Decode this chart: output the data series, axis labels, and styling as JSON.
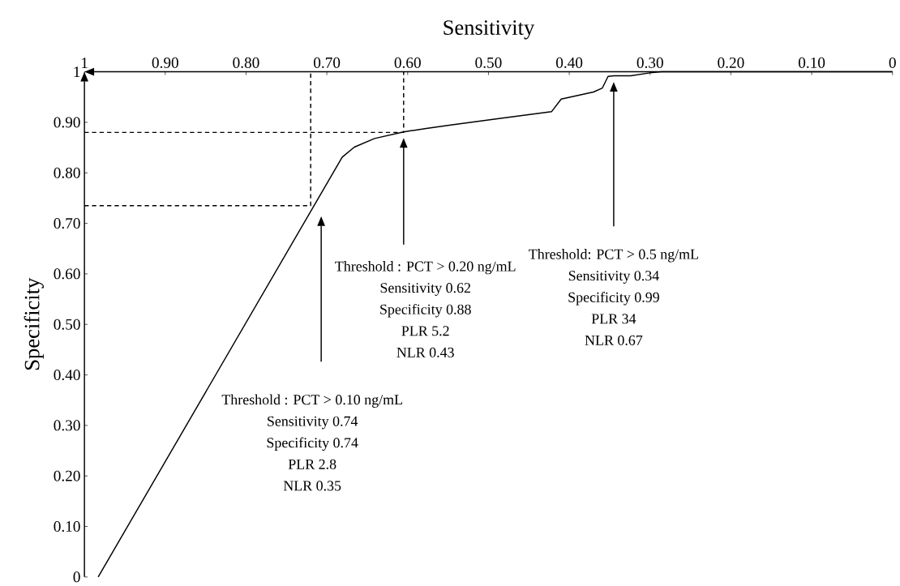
{
  "chart_data": {
    "type": "line",
    "xlabel": "Sensitivity",
    "ylabel": "Specificity",
    "xlim": [
      1,
      0
    ],
    "ylim": [
      0,
      1
    ],
    "xticks": [
      1,
      {
        "value": 0.9,
        "label": "0.90"
      },
      {
        "value": 0.8,
        "label": "0.80"
      },
      {
        "value": 0.7,
        "label": "0.70"
      },
      {
        "value": 0.6,
        "label": "0.60"
      },
      {
        "value": 0.5,
        "label": "0.50"
      },
      {
        "value": 0.4,
        "label": "0.40"
      },
      {
        "value": 0.3,
        "label": "0.30"
      },
      {
        "value": 0.2,
        "label": "0.20"
      },
      {
        "value": 0.1,
        "label": "0.10"
      },
      0
    ],
    "yticks": [
      0,
      {
        "value": 0.1,
        "label": "0.10"
      },
      {
        "value": 0.2,
        "label": "0.20"
      },
      {
        "value": 0.3,
        "label": "0.30"
      },
      {
        "value": 0.4,
        "label": "0.40"
      },
      {
        "value": 0.5,
        "label": "0.50"
      },
      {
        "value": 0.6,
        "label": "0.60"
      },
      {
        "value": 0.7,
        "label": "0.70"
      },
      {
        "value": 0.8,
        "label": "0.80"
      },
      {
        "value": 0.9,
        "label": "0.90"
      },
      1
    ],
    "line_style": "solid",
    "series": [
      {
        "color": "#000000",
        "x": [
          0.983,
          0.681,
          0.666,
          0.641,
          0.605,
          0.577,
          0.545,
          0.485,
          0.422,
          0.41,
          0.37,
          0.359,
          0.352,
          0.345,
          0.324,
          0.3,
          0.286,
          0
        ],
        "values": [
          0,
          0.831,
          0.851,
          0.868,
          0.881,
          0.888,
          0.895,
          0.908,
          0.921,
          0.946,
          0.96,
          0.968,
          0.991,
          0.992,
          0.992,
          0.998,
          1,
          1
        ]
      },
      {
        "color": "#000000",
        "line_style": "dashed",
        "x": [
          1,
          0.72,
          0.72
        ],
        "values": [
          0.735,
          0.735,
          1
        ]
      },
      {
        "color": "#000000",
        "line_style": "dashed",
        "x": [
          1,
          0.605,
          0.605
        ],
        "values": [
          0.88,
          0.88,
          1
        ]
      }
    ],
    "annotations": [
      "Threshold : PCT > 0.10 ng/mL",
      "Sensitivity 0.74",
      "Specificity 0.74",
      "PLR 2.8",
      "NLR 0.35",
      "Threshold : PCT > 0.20 ng/mL",
      "Sensitivity 0.62",
      "Specificity 0.88",
      "PLR 5.2",
      "NLR 0.43",
      "Threshold: PCT > 0.5 ng/mL",
      "Sensitivity 0.34",
      "Specificity 0.99",
      "PLR 34",
      "NLR 0.67"
    ]
  }
}
